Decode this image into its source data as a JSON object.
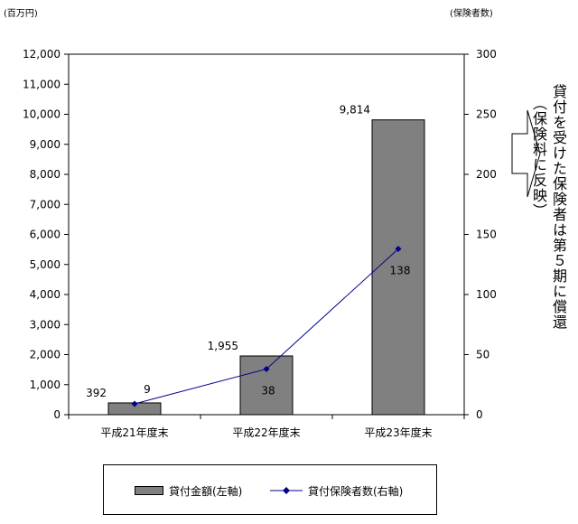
{
  "units": {
    "left": "(百万円)",
    "right": "(保険者数)"
  },
  "side_note": {
    "main": "貸付を受けた保険者は第５期に償還",
    "sub": "（保険料に反映）"
  },
  "legend": {
    "bar_label": "貸付金額(左軸)",
    "line_label": "貸付保険者数(右軸)"
  },
  "colors": {
    "bar": "#808080",
    "line": "#00008b",
    "marker": "#00008b"
  },
  "chart_data": {
    "type": "bar",
    "categories": [
      "平成21年度末",
      "平成22年度末",
      "平成23年度末"
    ],
    "series": [
      {
        "name": "貸付金額(左軸)",
        "type": "bar",
        "axis": "left",
        "values": [
          392,
          1955,
          9814
        ],
        "labels": [
          "392",
          "1,955",
          "9,814"
        ]
      },
      {
        "name": "貸付保険者数(右軸)",
        "type": "line",
        "axis": "right",
        "values": [
          9,
          38,
          138
        ],
        "labels": [
          "9",
          "38",
          "138"
        ]
      }
    ],
    "y_left": {
      "range": [
        0,
        12000
      ],
      "ticks": [
        0,
        1000,
        2000,
        3000,
        4000,
        5000,
        6000,
        7000,
        8000,
        9000,
        10000,
        11000,
        12000
      ],
      "tick_labels": [
        "0",
        "1,000",
        "2,000",
        "3,000",
        "4,000",
        "5,000",
        "6,000",
        "7,000",
        "8,000",
        "9,000",
        "10,000",
        "11,000",
        "12,000"
      ]
    },
    "y_right": {
      "range": [
        0,
        300
      ],
      "ticks": [
        0,
        50,
        100,
        150,
        200,
        250,
        300
      ],
      "tick_labels": [
        "0",
        "50",
        "100",
        "150",
        "200",
        "250",
        "300"
      ]
    },
    "grid": false,
    "legend_position": "bottom"
  }
}
